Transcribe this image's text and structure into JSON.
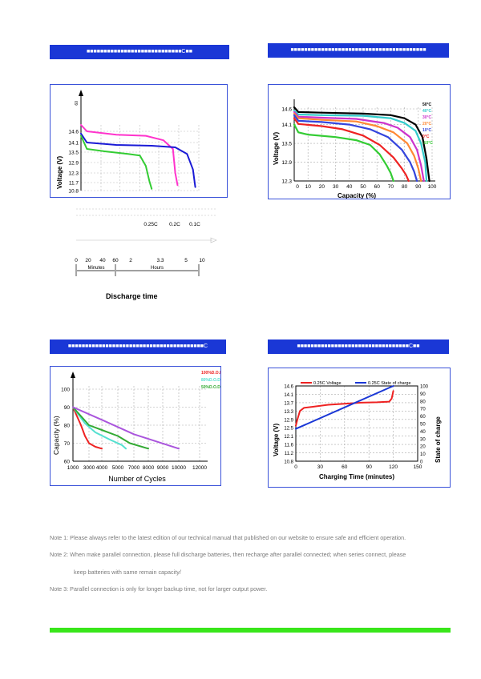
{
  "banners": {
    "top_left": "■■■■■■■■■■■■■■■■■■■■■■■■■■■■C■■",
    "top_right": "■■■■■■■■■■■■■■■■■■■■■■■■■■■■■■■■■■■■■■■■",
    "bottom_left": "■■■■■■■■■■■■■■■■■■■■■■■■■■■■■■■■■■■■■■■■C",
    "bottom_right": "■■■■■■■■■■■■■■■■■■■■■■■■■■■■■■■■■C■■"
  },
  "discharge_section": {
    "rate_labels": [
      "0.25C",
      "0.2C",
      "0.1C"
    ],
    "time_ticks": [
      "0",
      "20",
      "40",
      "60",
      "2",
      "3.3",
      "5",
      "10"
    ],
    "minutes_label": "Minutes",
    "hours_label": "Hours",
    "title": "Discharge time"
  },
  "notes": {
    "note1": "Note 1: Please always refer to the latest edition of our technical manual that published on our website to ensure safe and efficient operation.",
    "note2": "Note 2: When make parallel connection, please full discharge batteries, then recharge after parallel connected; when series connect, please",
    "note2_cont": "keep batteries with same remain capacity/",
    "note3": "Note 3: Parallel connection is only for longer backup time, not for larger output power."
  },
  "chart_data": [
    {
      "type": "line",
      "ylabel": "Voltage (V)",
      "y_ticks": [
        "14.6",
        "14.1",
        "13.5",
        "12.9",
        "12.3",
        "11.7",
        "10.8"
      ],
      "top_tick": "60",
      "series": [
        {
          "color": "#ff33cc",
          "x": [
            0,
            0.05,
            0.3,
            0.55,
            0.7,
            0.78,
            0.8,
            0.82
          ],
          "y": [
            14.8,
            14.6,
            14.45,
            14.4,
            14.2,
            13.7,
            12.3,
            11.4
          ]
        },
        {
          "color": "#1a1ad6",
          "x": [
            0,
            0.05,
            0.3,
            0.6,
            0.8,
            0.9,
            0.95,
            0.97
          ],
          "y": [
            14.5,
            14.1,
            13.95,
            13.9,
            13.8,
            13.4,
            12.5,
            11.2
          ]
        },
        {
          "color": "#33cc33",
          "x": [
            0,
            0.05,
            0.2,
            0.4,
            0.5,
            0.55,
            0.58,
            0.6
          ],
          "y": [
            14.4,
            13.7,
            13.55,
            13.4,
            13.3,
            12.7,
            11.8,
            11.0
          ]
        }
      ]
    },
    {
      "type": "line",
      "xlabel": "Capacity (%)",
      "ylabel": "Voltage (V)",
      "x_ticks": [
        "0",
        "10",
        "20",
        "30",
        "40",
        "50",
        "60",
        "70",
        "80",
        "90",
        "100"
      ],
      "y_ticks": [
        "14.6",
        "14.1",
        "13.5",
        "12.9",
        "12.3"
      ],
      "legend": [
        "50°C",
        "40°C",
        "30°C",
        "20°C",
        "10°C",
        "0°C",
        "-10°C"
      ],
      "series": [
        {
          "name": "50°C",
          "color": "#000000",
          "x": [
            0,
            3,
            20,
            50,
            70,
            80,
            88,
            93,
            96,
            98
          ],
          "y": [
            14.65,
            14.5,
            14.48,
            14.45,
            14.4,
            14.3,
            14.1,
            13.7,
            13.0,
            12.3
          ]
        },
        {
          "name": "40°C",
          "color": "#33cccc",
          "x": [
            0,
            3,
            20,
            50,
            70,
            80,
            88,
            92,
            95,
            96
          ],
          "y": [
            14.55,
            14.42,
            14.4,
            14.38,
            14.3,
            14.15,
            13.9,
            13.5,
            12.9,
            12.3
          ]
        },
        {
          "name": "30°C",
          "color": "#cc33cc",
          "x": [
            0,
            3,
            20,
            45,
            65,
            75,
            84,
            89,
            92,
            94
          ],
          "y": [
            14.5,
            14.35,
            14.32,
            14.28,
            14.15,
            14.0,
            13.7,
            13.3,
            12.8,
            12.3
          ]
        },
        {
          "name": "20°C",
          "color": "#ff8833",
          "x": [
            0,
            3,
            20,
            45,
            60,
            72,
            82,
            87,
            90,
            92
          ],
          "y": [
            14.45,
            14.3,
            14.25,
            14.2,
            14.05,
            13.85,
            13.5,
            13.1,
            12.7,
            12.3
          ]
        },
        {
          "name": "10°C",
          "color": "#3344dd",
          "x": [
            0,
            3,
            20,
            40,
            55,
            68,
            78,
            84,
            87,
            89
          ],
          "y": [
            14.4,
            14.22,
            14.18,
            14.1,
            13.95,
            13.7,
            13.3,
            12.9,
            12.6,
            12.3
          ]
        },
        {
          "name": "0°C",
          "color": "#ee2222",
          "x": [
            0,
            3,
            20,
            35,
            50,
            62,
            72,
            78,
            81,
            83
          ],
          "y": [
            14.3,
            14.12,
            14.05,
            13.95,
            13.75,
            13.45,
            13.05,
            12.7,
            12.5,
            12.3
          ]
        },
        {
          "name": "-10°C",
          "color": "#33cc33",
          "x": [
            0,
            3,
            10,
            30,
            45,
            55,
            62,
            67,
            70,
            72
          ],
          "y": [
            14.1,
            13.85,
            13.78,
            13.7,
            13.6,
            13.45,
            13.15,
            12.8,
            12.55,
            12.3
          ]
        }
      ]
    },
    {
      "type": "line",
      "xlabel": "Number of Cycles",
      "ylabel": "Capacity (%)",
      "x_ticks": [
        "1000",
        "3000",
        "4000",
        "5000",
        "7000",
        "8000",
        "9000",
        "10000",
        "12000"
      ],
      "y_ticks": [
        "100",
        "90",
        "80",
        "70",
        "60"
      ],
      "legend": [
        "100%D.O.D",
        "80%D.O.D",
        "50%D.O.D"
      ],
      "series": [
        {
          "name": "100%D.O.D",
          "color": "#ee2222",
          "x": [
            1000,
            2000,
            2500,
            3000,
            3500,
            4000
          ],
          "y": [
            90,
            80,
            74,
            70,
            68,
            67
          ]
        },
        {
          "name": "80%D.O.D",
          "color": "#55e0d0",
          "x": [
            1000,
            2500,
            3500,
            4500,
            5500,
            6000
          ],
          "y": [
            90,
            81,
            76,
            72,
            69,
            67
          ]
        },
        {
          "name": "50%D.O.D",
          "color": "#33aa33",
          "x": [
            1000,
            3000,
            5000,
            6500,
            8000
          ],
          "y": [
            90,
            80,
            74,
            70,
            67
          ]
        },
        {
          "name": "",
          "color": "#aa55dd",
          "x": [
            1000,
            4000,
            7000,
            10000
          ],
          "y": [
            90,
            83,
            75,
            67
          ]
        }
      ]
    },
    {
      "type": "line",
      "xlabel": "Charging Time (minutes)",
      "ylabel": "Voltage (V)",
      "y2label": "State of charge",
      "x_ticks": [
        "0",
        "30",
        "60",
        "90",
        "120",
        "150"
      ],
      "y_ticks": [
        "14.6",
        "14.1",
        "13.7",
        "13.3",
        "12.9",
        "12.5",
        "12.1",
        "11.6",
        "11.2",
        "10.8"
      ],
      "y2_ticks": [
        "100",
        "90",
        "80",
        "70",
        "60",
        "50",
        "40",
        "30",
        "20",
        "10",
        "0"
      ],
      "legend": [
        "0.25C Voltage",
        "0.25C State of charge"
      ],
      "series": [
        {
          "name": "0.25C Voltage",
          "color": "#ee2222",
          "x": [
            0,
            2,
            5,
            10,
            20,
            40,
            60,
            80,
            100,
            115,
            118,
            120
          ],
          "y": [
            12.6,
            12.9,
            13.3,
            13.45,
            13.5,
            13.6,
            13.65,
            13.7,
            13.72,
            13.75,
            13.9,
            14.3
          ]
        },
        {
          "name": "0.25C State of charge",
          "color": "#1a37d6",
          "x": [
            0,
            120
          ],
          "y": [
            43,
            100
          ]
        }
      ]
    }
  ]
}
